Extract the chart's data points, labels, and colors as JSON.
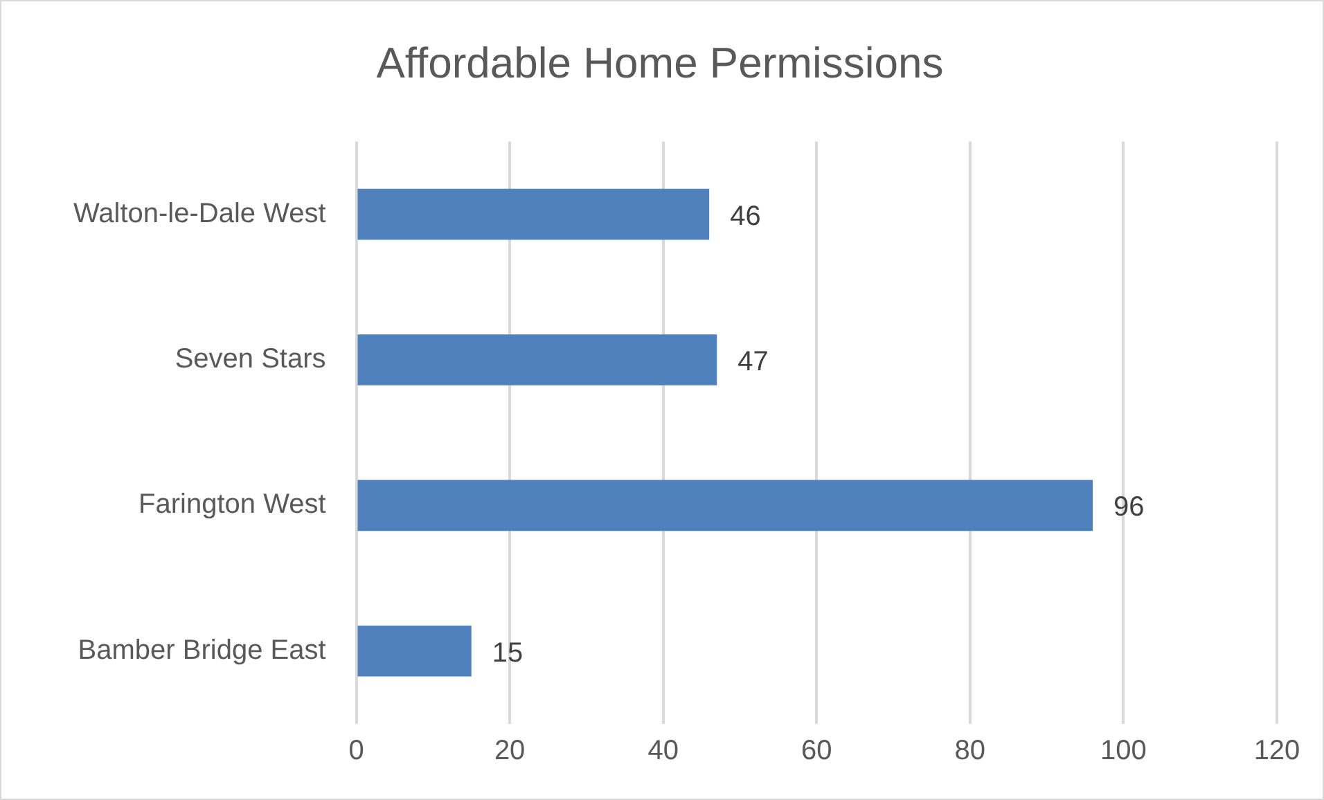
{
  "chart_data": {
    "type": "bar",
    "orientation": "horizontal",
    "title": "Affordable Home Permissions",
    "categories": [
      "Walton-le-Dale West",
      "Seven Stars",
      "Farington West",
      "Bamber Bridge East"
    ],
    "values": [
      46,
      47,
      96,
      15
    ],
    "color": "#4f81bd",
    "xlim": [
      0,
      120
    ],
    "xticks": [
      0,
      20,
      40,
      60,
      80,
      100,
      120
    ],
    "grid": "x",
    "data_labels": true,
    "legend": false
  }
}
